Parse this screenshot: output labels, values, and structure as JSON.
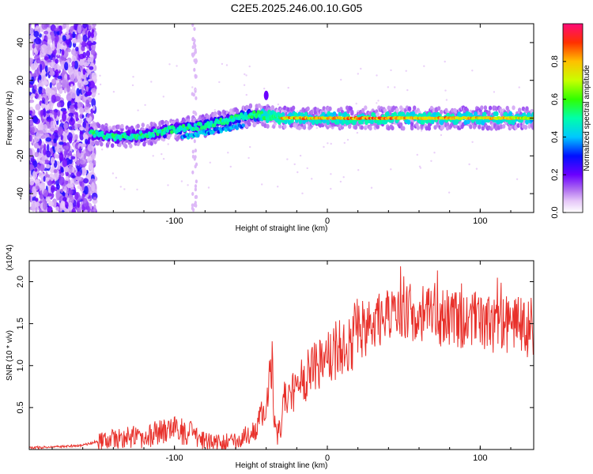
{
  "title": "C2E5.2025.246.00.10.G05",
  "chart_data": [
    {
      "type": "heatmap",
      "xlabel": "Height of straight line (km)",
      "ylabel": "Frequency (Hz)",
      "xlim": [
        -195,
        135
      ],
      "ylim": [
        -50,
        50
      ],
      "xticks": [
        -100,
        0,
        100
      ],
      "yticks": [
        -40,
        -20,
        0,
        20,
        40
      ],
      "colorbar": {
        "label": "Normalized spectral amplitude",
        "range": [
          0,
          1
        ],
        "ticks": [
          0.0,
          0.2,
          0.4,
          0.6,
          0.8
        ]
      },
      "ridge": {
        "x": [
          -155,
          -140,
          -120,
          -100,
          -80,
          -60,
          -45,
          -40,
          -30,
          -20,
          0,
          20,
          40,
          60,
          80,
          100,
          120,
          135
        ],
        "y": [
          -8,
          -10,
          -9,
          -6,
          -4,
          0,
          2,
          1,
          0,
          0,
          0,
          0,
          0,
          0,
          0,
          0,
          0,
          0
        ],
        "amplitude": [
          0.3,
          0.35,
          0.35,
          0.4,
          0.45,
          0.5,
          0.55,
          0.95,
          0.9,
          0.9,
          0.85,
          0.95,
          0.95,
          0.9,
          0.9,
          0.85,
          0.85,
          0.8
        ]
      }
    },
    {
      "type": "line",
      "xlabel": "Height of straight line (km)",
      "ylabel": "SNR (10 * v/v)",
      "y_multiplier": "(x10^4)",
      "xlim": [
        -195,
        135
      ],
      "ylim": [
        0,
        2.25
      ],
      "xticks": [
        -100,
        0,
        100
      ],
      "yticks": [
        0.5,
        1.0,
        1.5,
        2.0
      ],
      "color": "#e8302a",
      "series": [
        {
          "x": [
            -195,
            -180,
            -160,
            -150,
            -140,
            -130,
            -120,
            -110,
            -100,
            -95,
            -90,
            -85,
            -80,
            -75,
            -70,
            -60,
            -50,
            -45,
            -40,
            -38,
            -36,
            -35,
            -33,
            -30,
            -28,
            -25,
            -20,
            -15,
            -10,
            -5,
            0,
            5,
            10,
            15,
            20,
            25,
            30,
            35,
            40,
            45,
            50,
            55,
            60,
            65,
            70,
            75,
            80,
            85,
            90,
            95,
            100,
            105,
            110,
            115,
            120,
            125,
            130,
            135
          ],
          "y": [
            0.02,
            0.03,
            0.05,
            0.1,
            0.12,
            0.15,
            0.15,
            0.2,
            0.25,
            0.22,
            0.2,
            0.15,
            0.1,
            0.08,
            0.08,
            0.1,
            0.2,
            0.3,
            0.6,
            0.8,
            1.05,
            0.5,
            0.15,
            0.3,
            0.6,
            0.65,
            0.75,
            0.85,
            0.95,
            1.05,
            1.1,
            1.2,
            1.25,
            1.3,
            1.4,
            1.45,
            1.5,
            1.55,
            1.6,
            1.6,
            1.65,
            1.62,
            1.6,
            1.6,
            1.65,
            1.55,
            1.6,
            1.55,
            1.5,
            1.55,
            1.5,
            1.55,
            1.45,
            1.5,
            1.45,
            1.5,
            1.4,
            1.45
          ]
        }
      ]
    }
  ]
}
